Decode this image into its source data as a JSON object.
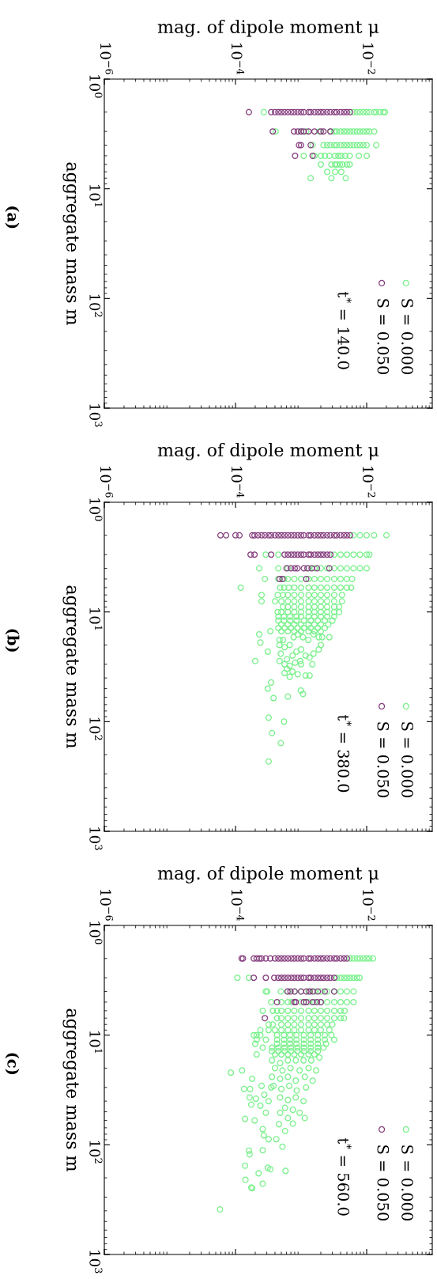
{
  "chart_data": [
    {
      "type": "scatter",
      "xlabel": "mag. of dipole moment μ",
      "ylabel": "aggregate mass m",
      "log": "xy",
      "marker": "circle",
      "legend": "bottom right",
      "xlim": [
        1e-06,
        0.1
      ],
      "xticks": [
        {
          "value": 1e-06,
          "label": "10$^{−6}$"
        },
        {
          "value": 0.0001,
          "label": "10$^{−4}$"
        },
        {
          "value": 0.01,
          "label": "10$^{−2}$"
        }
      ],
      "ylim": [
        1000,
        1
      ],
      "yticks": [
        {
          "value": 1,
          "label": "10$^{0}$"
        },
        {
          "value": 10,
          "label": "10$^{1}$"
        },
        {
          "value": 100,
          "label": "10$^{2}$"
        },
        {
          "value": 1000,
          "label": "10$^{3}$"
        }
      ],
      "annotations": [
        "t$^{*}$ = 140.0",
        "(a)"
      ],
      "series": [
        {
          "name": "S = 0.000",
          "color": "#79f08b",
          "values": [
            2,
            2,
            2,
            2,
            2,
            2,
            2,
            2,
            2,
            2,
            2,
            2,
            3,
            3,
            3,
            3,
            3,
            3,
            3,
            3,
            3,
            3,
            3,
            3,
            3,
            3,
            3,
            3,
            3,
            3,
            4,
            4,
            4,
            4,
            4,
            4,
            4,
            4,
            4,
            4,
            4,
            4,
            4,
            4,
            4,
            4,
            5,
            5,
            5,
            5,
            5,
            5,
            5,
            5,
            5,
            5,
            5,
            5,
            6,
            6,
            6,
            6,
            6,
            6,
            6,
            6,
            7,
            7,
            7,
            8,
            8,
            8
          ],
          "x": [
            0.00027,
            0.0063,
            0.0071,
            0.0079,
            0.0089,
            0.01,
            0.011,
            0.013,
            0.014,
            0.016,
            0.018,
            0.019,
            0.00041,
            0.001,
            0.0012,
            0.0019,
            0.0028,
            0.0032,
            0.0035,
            0.004,
            0.0045,
            0.005,
            0.0056,
            0.0063,
            0.0071,
            0.0079,
            0.0089,
            0.01,
            0.011,
            0.013,
            0.0015,
            0.0022,
            0.0025,
            0.0028,
            0.0032,
            0.0035,
            0.004,
            0.0045,
            0.005,
            0.0056,
            0.0063,
            0.0071,
            0.0079,
            0.0089,
            0.01,
            0.014,
            0.0011,
            0.0016,
            0.002,
            0.0023,
            0.0027,
            0.0033,
            0.0037,
            0.0041,
            0.0047,
            0.0055,
            0.0076,
            0.01,
            0.002,
            0.0029,
            0.0033,
            0.0035,
            0.0039,
            0.0043,
            0.005,
            0.0055,
            0.0025,
            0.0033,
            0.0041,
            0.0014,
            0.0029,
            0.0048
          ]
        },
        {
          "name": "S = 0.050",
          "color": "#853d7e",
          "values": [
            2,
            2,
            2,
            2,
            2,
            2,
            2,
            2,
            2,
            2,
            2,
            2,
            2,
            2,
            2,
            2,
            2,
            2,
            2,
            2,
            2,
            2,
            2,
            2,
            2,
            2,
            3,
            3,
            3,
            3,
            3,
            3,
            3,
            3,
            3,
            3,
            4,
            4,
            4,
            5,
            5
          ],
          "x": [
            0.00016,
            0.00035,
            0.0004,
            0.00045,
            0.0005,
            0.00056,
            0.00063,
            0.00071,
            0.00079,
            0.00089,
            0.001,
            0.0011,
            0.0013,
            0.0014,
            0.0016,
            0.0018,
            0.002,
            0.0022,
            0.0025,
            0.0028,
            0.0032,
            0.0035,
            0.004,
            0.0045,
            0.005,
            0.0056,
            0.00037,
            0.00078,
            0.00089,
            0.001,
            0.0011,
            0.0013,
            0.0016,
            0.002,
            0.0022,
            0.0028,
            0.00093,
            0.001,
            0.0014,
            0.00081,
            0.0015
          ]
        }
      ]
    },
    {
      "type": "scatter",
      "xlabel": "mag. of dipole moment μ",
      "ylabel": "aggregate mass m",
      "log": "xy",
      "marker": "circle",
      "legend": "bottom right",
      "xlim": [
        1e-06,
        0.1
      ],
      "xticks": [
        {
          "value": 1e-06,
          "label": "10$^{−6}$"
        },
        {
          "value": 0.0001,
          "label": "10$^{−4}$"
        },
        {
          "value": 0.01,
          "label": "10$^{−2}$"
        }
      ],
      "ylim": [
        1000,
        1
      ],
      "yticks": [
        {
          "value": 1,
          "label": "10$^{0}$"
        },
        {
          "value": 10,
          "label": "10$^{1}$"
        },
        {
          "value": 100,
          "label": "10$^{2}$"
        },
        {
          "value": 1000,
          "label": "10$^{3}$"
        }
      ],
      "annotations": [
        "t$^{*}$ = 380.0",
        "(b)"
      ],
      "series": [
        {
          "name": "S = 0.000",
          "color": "#79f08b",
          "values": [
            2,
            2,
            2,
            2,
            2,
            3,
            3,
            3,
            3,
            3,
            3,
            3,
            3,
            3,
            4,
            4,
            4,
            4,
            4,
            4,
            4,
            4,
            4,
            4,
            4,
            4,
            4,
            5,
            5,
            5,
            5,
            5,
            5,
            5,
            5,
            5,
            5,
            5,
            5,
            5,
            5,
            6,
            6,
            6,
            6,
            6,
            6,
            6,
            6,
            6,
            6,
            6,
            6,
            6,
            6,
            7,
            7,
            7,
            7,
            7,
            7,
            7,
            7,
            7,
            7,
            7,
            7,
            8,
            8,
            8,
            8,
            8,
            8,
            8,
            8,
            8,
            8,
            8,
            8,
            9,
            9,
            9,
            9,
            9,
            9,
            9,
            9,
            9,
            9,
            10,
            10,
            10,
            10,
            10,
            10,
            10,
            10,
            10,
            10,
            10,
            11,
            11,
            11,
            11,
            11,
            11,
            11,
            11,
            11,
            11,
            12,
            12,
            12,
            12,
            12,
            12,
            12,
            12,
            12,
            13,
            13,
            13,
            13,
            13,
            13,
            13,
            13,
            14,
            14,
            14,
            14,
            14,
            14,
            14,
            14,
            15,
            15,
            15,
            15,
            15,
            15,
            15,
            15,
            16,
            16,
            16,
            17,
            17,
            17,
            17,
            17,
            18,
            18,
            18,
            19,
            20,
            20,
            20,
            21,
            22,
            22,
            23,
            23,
            24,
            24,
            25,
            25,
            26,
            27,
            28,
            28,
            28,
            29,
            30,
            30,
            30,
            31,
            33,
            35,
            36,
            37,
            38,
            38,
            39,
            44,
            50,
            52,
            56,
            59,
            61,
            92,
            100,
            127,
            157,
            231
          ],
          "x": [
            0.0063,
            0.0079,
            0.01,
            0.013,
            0.02,
            0.00029,
            0.00045,
            0.0032,
            0.004,
            0.005,
            0.0063,
            0.0079,
            0.01,
            0.011,
            0.00023,
            0.00045,
            0.00063,
            0.0013,
            0.0016,
            0.002,
            0.0025,
            0.0032,
            0.004,
            0.005,
            0.0063,
            0.0079,
            0.01,
            0.00028,
            0.00045,
            0.00055,
            0.00063,
            0.00079,
            0.001,
            0.0013,
            0.0016,
            0.002,
            0.0025,
            0.0032,
            0.004,
            0.005,
            0.006,
            0.00012,
            0.00048,
            0.00055,
            0.00065,
            0.00079,
            0.001,
            0.0013,
            0.0016,
            0.002,
            0.0025,
            0.0032,
            0.004,
            0.005,
            0.0058,
            0.00025,
            0.00044,
            0.00053,
            0.00063,
            0.00079,
            0.001,
            0.0013,
            0.0016,
            0.002,
            0.0025,
            0.0032,
            0.0042,
            0.00025,
            0.0004,
            0.0005,
            0.00063,
            0.00079,
            0.001,
            0.0013,
            0.0016,
            0.002,
            0.0025,
            0.0032,
            0.0042,
            0.00053,
            0.00063,
            0.00079,
            0.001,
            0.0013,
            0.0016,
            0.002,
            0.0025,
            0.0032,
            0.0038,
            0.00044,
            0.0005,
            0.00063,
            0.00079,
            0.001,
            0.0013,
            0.0016,
            0.002,
            0.0025,
            0.0032,
            0.0038,
            0.00045,
            0.00055,
            0.00068,
            0.00085,
            0.001,
            0.0013,
            0.0016,
            0.002,
            0.0025,
            0.0032,
            0.00045,
            0.00055,
            0.00068,
            0.00085,
            0.0011,
            0.0014,
            0.0018,
            0.0023,
            0.003,
            0.0005,
            0.00063,
            0.00079,
            0.001,
            0.0013,
            0.0016,
            0.002,
            0.0026,
            0.00045,
            0.00056,
            0.0007,
            0.00088,
            0.0011,
            0.0014,
            0.0018,
            0.0023,
            0.00034,
            0.0005,
            0.00063,
            0.00079,
            0.001,
            0.0013,
            0.0016,
            0.002,
            0.00023,
            0.00089,
            0.00155,
            0.00077,
            0.00107,
            0.00186,
            0.0021,
            0.0027,
            0.00047,
            0.00053,
            0.00129,
            0.00024,
            0.00047,
            0.00067,
            0.002,
            0.00056,
            0.00186,
            0.001,
            0.00031,
            0.00085,
            0.00155,
            0.00049,
            0.00117,
            0.00074,
            0.00135,
            0.00061,
            0.0002,
            0.00047,
            0.00097,
            0.00081,
            0.00056,
            0.00148,
            0.001,
            0.00067,
            0.00061,
            0.00074,
            0.00056,
            0.00089,
            0.00117,
            0.00135,
            0.00067,
            0.00035,
            0.00031,
            0.00099,
            0.00107,
            0.00063,
            0.00038,
            0.00032,
            0.00055,
            0.00036,
            0.00049,
            0.00032
          ]
        },
        {
          "name": "S = 0.050",
          "color": "#853d7e",
          "values": [
            2,
            2,
            2,
            2,
            2,
            2,
            2,
            2,
            2,
            2,
            2,
            2,
            2,
            2,
            2,
            2,
            2,
            2,
            2,
            2,
            2,
            2,
            2,
            2,
            2,
            2,
            2,
            2,
            2,
            2,
            2,
            2,
            2,
            2,
            2,
            3,
            3,
            3,
            3,
            3,
            3,
            3,
            3,
            3,
            3,
            3,
            3,
            3,
            3,
            3,
            3,
            3,
            3,
            4,
            4,
            4,
            4,
            4,
            4,
            4,
            4,
            4,
            5,
            5,
            5
          ],
          "x": [
            5.9e-05,
            7.2e-05,
            0.0001,
            0.000115,
            0.00018,
            0.000195,
            0.00022,
            0.00025,
            0.00028,
            0.00032,
            0.00035,
            0.0004,
            0.00045,
            0.0005,
            0.00056,
            0.00063,
            0.00071,
            0.00079,
            0.00089,
            0.001,
            0.0011,
            0.0013,
            0.0014,
            0.0016,
            0.0018,
            0.002,
            0.0022,
            0.0025,
            0.0028,
            0.0032,
            0.0035,
            0.004,
            0.0045,
            0.005,
            0.0056,
            0.00017,
            0.000195,
            0.00035,
            0.00056,
            0.00063,
            0.00071,
            0.00079,
            0.00089,
            0.001,
            0.0011,
            0.0013,
            0.0014,
            0.0016,
            0.0018,
            0.002,
            0.0022,
            0.0025,
            0.0028,
            0.0006,
            0.0007,
            0.0008,
            0.00088,
            0.0011,
            0.00125,
            0.00145,
            0.00175,
            0.0027,
            0.00047,
            0.00052,
            0.0012
          ]
        }
      ]
    },
    {
      "type": "scatter",
      "xlabel": "mag. of dipole moment μ",
      "ylabel": "aggregate mass m",
      "log": "xy",
      "marker": "circle",
      "legend": "bottom right",
      "xlim": [
        1e-06,
        0.1
      ],
      "xticks": [
        {
          "value": 1e-06,
          "label": "10$^{−6}$"
        },
        {
          "value": 0.0001,
          "label": "10$^{−4}$"
        },
        {
          "value": 0.01,
          "label": "10$^{−2}$"
        }
      ],
      "ylim": [
        1000,
        1
      ],
      "yticks": [
        {
          "value": 1,
          "label": "10$^{0}$"
        },
        {
          "value": 10,
          "label": "10$^{1}$"
        },
        {
          "value": 100,
          "label": "10$^{2}$"
        },
        {
          "value": 1000,
          "label": "10$^{3}$"
        }
      ],
      "annotations": [
        "t$^{*}$ = 560.0",
        "(c)"
      ],
      "series": [
        {
          "name": "S = 0.000",
          "color": "#79f08b",
          "values": [
            2,
            2,
            2,
            2,
            2,
            2,
            2,
            2,
            3,
            3,
            3,
            3,
            3,
            3,
            3,
            3,
            3,
            3,
            4,
            4,
            4,
            4,
            4,
            4,
            4,
            4,
            4,
            4,
            4,
            4,
            4,
            4,
            5,
            5,
            5,
            5,
            5,
            5,
            5,
            5,
            5,
            5,
            5,
            5,
            5,
            6,
            6,
            6,
            6,
            6,
            6,
            6,
            6,
            6,
            6,
            6,
            6,
            6,
            6,
            7,
            7,
            7,
            7,
            7,
            7,
            7,
            7,
            7,
            7,
            7,
            7,
            8,
            8,
            8,
            8,
            8,
            8,
            8,
            8,
            8,
            8,
            8,
            9,
            9,
            9,
            9,
            9,
            9,
            9,
            9,
            9,
            9,
            9,
            10,
            10,
            10,
            10,
            10,
            10,
            10,
            10,
            10,
            10,
            10,
            10,
            11,
            11,
            11,
            11,
            11,
            11,
            11,
            11,
            11,
            11,
            11,
            12,
            12,
            12,
            12,
            12,
            12,
            12,
            12,
            12,
            13,
            13,
            13,
            13,
            13,
            13,
            13,
            13,
            13,
            13,
            14,
            14,
            14,
            14,
            14,
            14,
            14,
            14,
            15,
            15,
            15,
            15,
            15,
            15,
            15,
            15,
            16,
            17,
            17,
            17,
            17,
            17,
            18,
            20,
            20,
            20,
            21,
            21,
            21,
            21,
            22,
            24,
            24,
            24,
            25,
            25,
            26,
            26,
            29,
            29,
            29,
            30,
            30,
            31,
            31,
            31,
            32,
            35,
            37,
            37,
            37,
            38,
            39,
            40,
            40,
            43,
            44,
            46,
            48,
            51,
            51,
            51,
            57,
            57,
            58,
            60,
            64,
            65,
            72,
            75,
            82,
            89,
            89,
            104,
            112,
            113,
            122,
            155,
            162,
            167,
            173,
            182,
            208,
            226,
            245,
            249,
            388
          ],
          "x": [
            0.0056,
            0.0063,
            0.0071,
            0.0079,
            0.0089,
            0.01,
            0.011,
            0.0125,
            0.000107,
            0.00016,
            0.0035,
            0.004,
            0.0045,
            0.005,
            0.0056,
            0.0063,
            0.0071,
            0.0078,
            0.00029,
            0.000305,
            0.00049,
            0.00063,
            0.00079,
            0.001,
            0.0013,
            0.0016,
            0.002,
            0.0025,
            0.0032,
            0.004,
            0.005,
            0.0063,
            0.00035,
            0.0005,
            0.00063,
            0.00072,
            0.001,
            0.0013,
            0.0016,
            0.002,
            0.0025,
            0.0032,
            0.004,
            0.005,
            0.0063,
            0.00026,
            0.00037,
            0.00043,
            0.0005,
            0.00063,
            0.00079,
            0.001,
            0.0013,
            0.0016,
            0.002,
            0.0025,
            0.0032,
            0.004,
            0.0046,
            0.00043,
            0.0005,
            0.00063,
            0.00079,
            0.001,
            0.0013,
            0.0016,
            0.002,
            0.0025,
            0.0032,
            0.004,
            0.0045,
            0.00032,
            0.00037,
            0.0005,
            0.00063,
            0.00079,
            0.001,
            0.0013,
            0.0016,
            0.002,
            0.0025,
            0.003,
            0.00024,
            0.00032,
            0.0004,
            0.0005,
            0.00063,
            0.00079,
            0.001,
            0.0013,
            0.0016,
            0.002,
            0.0027,
            0.00019,
            0.00021,
            0.00024,
            0.00043,
            0.00055,
            0.00068,
            0.00085,
            0.0011,
            0.0014,
            0.0018,
            0.0023,
            0.0029,
            0.00021,
            0.00029,
            0.00043,
            0.00055,
            0.00068,
            0.00085,
            0.0011,
            0.0014,
            0.0018,
            0.0023,
            0.0032,
            0.0002,
            0.00043,
            0.00055,
            0.00068,
            0.00085,
            0.0011,
            0.0014,
            0.0018,
            0.0024,
            0.00026,
            0.00036,
            0.00045,
            0.00056,
            0.0007,
            0.00088,
            0.0011,
            0.0014,
            0.0018,
            0.0022,
            0.00036,
            0.00045,
            0.00056,
            0.0007,
            0.00088,
            0.0011,
            0.0014,
            0.0018,
            0.00021,
            0.0004,
            0.0005,
            0.00063,
            0.00079,
            0.001,
            0.0013,
            0.0016,
            0.0019,
            0.00036,
            0.00063,
            0.00083,
            0.00109,
            0.00143,
            0.00048,
            0.0004,
            0.00069,
            0.0013,
            0.000126,
            0.00052,
            0.00095,
            0.0017,
            8.5e-05,
            0.00036,
            0.00063,
            0.00114,
            0.00018,
            0.00048,
            0.00083,
            0.0015,
            0.00025,
            0.00038,
            0.00066,
            0.00035,
            0.00119,
            0.000135,
            0.000167,
            0.0005,
            0.00086,
            0.000275,
            0.000164,
            0.00048,
            0.00083,
            0.000205,
            0.00063,
            0.00032,
            0.00109,
            0.000174,
            0.00024,
            0.00057,
            0.00075,
            0.00029,
            0.00095,
            0.00048,
            0.00063,
            0.00114,
            0.00014,
            0.000196,
            0.00075,
            0.00046,
            0.00026,
            0.00057,
            0.00027,
            0.00032,
            0.00042,
            0.00052,
            0.00026,
            0.00016,
            0.000164,
            0.00014,
            0.00031,
            0.00034,
            0.00058,
            0.000225,
            0.000142,
            0.00026,
            0.000174,
            0.00018,
            5.8e-05
          ]
        },
        {
          "name": "S = 0.050",
          "color": "#853d7e",
          "values": [
            2,
            2,
            2,
            2,
            2,
            2,
            2,
            2,
            2,
            2,
            2,
            2,
            2,
            2,
            2,
            2,
            2,
            2,
            2,
            2,
            2,
            2,
            2,
            2,
            2,
            2,
            2,
            2,
            2,
            2,
            2,
            3,
            3,
            3,
            3,
            3,
            3,
            3,
            3,
            3,
            3,
            3,
            3,
            3,
            3,
            3,
            3,
            3,
            3,
            3,
            3,
            3,
            4,
            4,
            4,
            4,
            4,
            4,
            4,
            4,
            4,
            4,
            5,
            5,
            5,
            5,
            5,
            5,
            5,
            5,
            7
          ],
          "x": [
            0.000124,
            0.00013,
            0.00019,
            0.00021,
            0.00023,
            0.00025,
            0.00029,
            0.00034,
            0.0004,
            0.00045,
            0.0005,
            0.00056,
            0.00063,
            0.00071,
            0.00079,
            0.00089,
            0.001,
            0.0011,
            0.0013,
            0.0014,
            0.0016,
            0.0018,
            0.002,
            0.0022,
            0.0025,
            0.0028,
            0.0032,
            0.0035,
            0.004,
            0.0045,
            0.005,
            0.00019,
            0.00029,
            0.00039,
            0.00045,
            0.0005,
            0.00056,
            0.00063,
            0.00071,
            0.00079,
            0.00089,
            0.001,
            0.0011,
            0.0013,
            0.0014,
            0.0016,
            0.0018,
            0.002,
            0.0022,
            0.0025,
            0.0028,
            0.0032,
            0.00062,
            0.00069,
            0.0008,
            0.001,
            0.0012,
            0.00135,
            0.0015,
            0.0018,
            0.0023,
            0.0032,
            0.00043,
            0.00079,
            0.00083,
            0.0011,
            0.0012,
            0.0015,
            0.00175,
            0.002,
            0.00028
          ]
        }
      ]
    }
  ]
}
